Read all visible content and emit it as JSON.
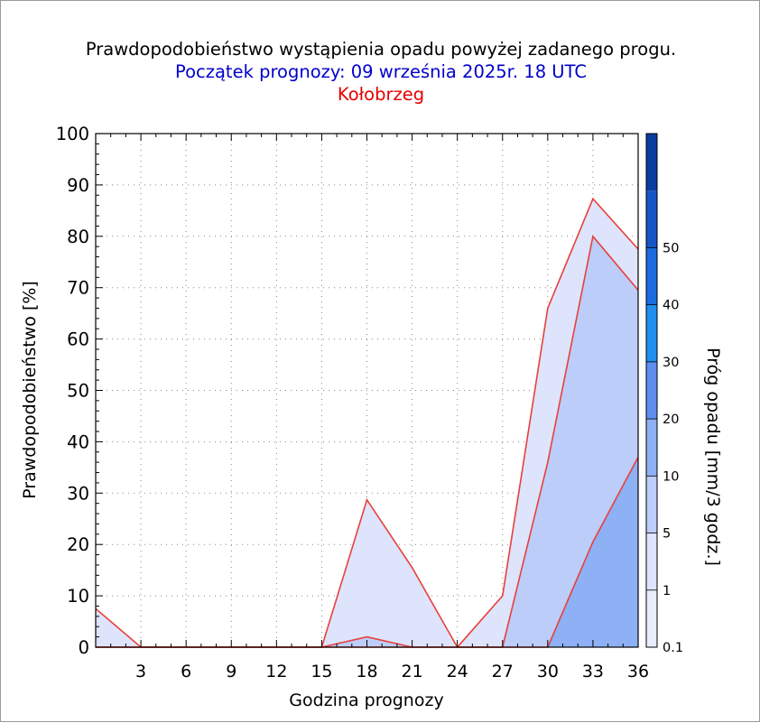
{
  "header": {
    "title": "Prawdopodobieństwo wystąpienia opadu powyżej zadanego progu.",
    "subtitle": "Początek prognozy: 09 września 2025r. 18 UTC",
    "station": "Kołobrzeg"
  },
  "chart_data": {
    "type": "area",
    "title": "Prawdopodobieństwo wystąpienia opadu powyżej zadanego progu.",
    "subtitle": "Początek prognozy: 09 września 2025r. 18 UTC",
    "location": "Kołobrzeg",
    "xlabel": "Godzina prognozy",
    "ylabel": "Prawdopodobieństwo [%]",
    "colorbar_label": "Próg opadu [mm/3 godz.]",
    "xlim": [
      0,
      36
    ],
    "ylim": [
      0,
      100
    ],
    "x_ticks": [
      3,
      6,
      9,
      12,
      15,
      18,
      21,
      24,
      27,
      30,
      33,
      36
    ],
    "y_ticks": [
      0,
      10,
      20,
      30,
      40,
      50,
      60,
      70,
      80,
      90,
      100
    ],
    "grid": "dotted",
    "x": [
      0,
      3,
      6,
      9,
      12,
      15,
      18,
      21,
      24,
      27,
      30,
      33,
      36
    ],
    "series": [
      {
        "threshold": "0.1",
        "color": "#dde4fc",
        "values": [
          7.5,
          0,
          0,
          0,
          0,
          0,
          28.7,
          15.5,
          0,
          10,
          66,
          87.3,
          77.5
        ]
      },
      {
        "threshold": "1",
        "color": "#bccdf9",
        "values": [
          0,
          0,
          0,
          0,
          0,
          0,
          2,
          0,
          0,
          0,
          36,
          80,
          69.5
        ]
      },
      {
        "threshold": "5",
        "color": "#8eb0f5",
        "values": [
          0,
          0,
          0,
          0,
          0,
          0,
          0,
          0,
          0,
          0,
          0,
          20.5,
          37
        ]
      }
    ],
    "colorbar": {
      "labels": [
        "0.1",
        "1",
        "5",
        "10",
        "20",
        "30",
        "40",
        "50"
      ],
      "colors": [
        "#e8ecfd",
        "#dde4fc",
        "#bccdf9",
        "#8eb0f5",
        "#5e8ff0",
        "#1e90f0",
        "#1a6ce0",
        "#1555c6",
        "#0a3ca0"
      ]
    }
  }
}
